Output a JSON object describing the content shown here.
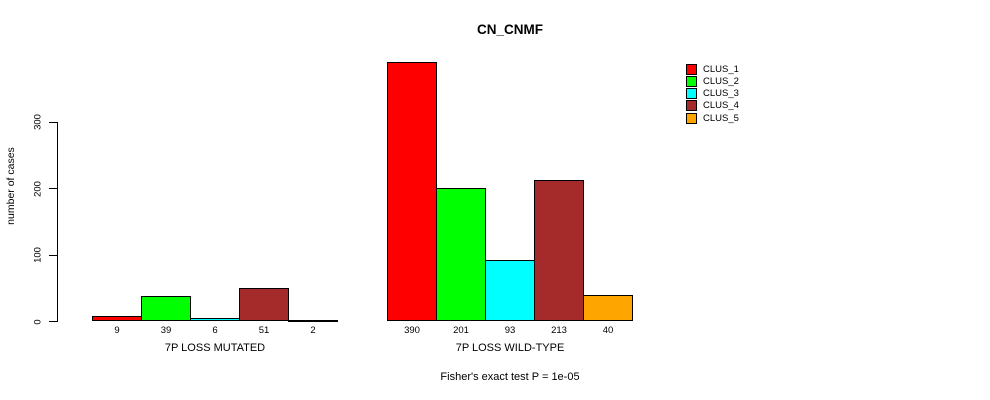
{
  "chart_data": {
    "type": "bar",
    "title": "CN_CNMF",
    "ylabel": "number of cases",
    "xlabel": "",
    "ylim": [
      0,
      390
    ],
    "yticks": [
      0,
      100,
      200,
      300
    ],
    "grid": false,
    "legend_position": "top-right",
    "caption": "Fisher's exact test P = 1e-05",
    "categories": [
      "7P LOSS MUTATED",
      "7P LOSS WILD-TYPE"
    ],
    "series": [
      {
        "name": "CLUS_1",
        "color": "#ff0000",
        "values": [
          9,
          390
        ]
      },
      {
        "name": "CLUS_2",
        "color": "#00ff00",
        "values": [
          39,
          201
        ]
      },
      {
        "name": "CLUS_3",
        "color": "#00ffff",
        "values": [
          6,
          93
        ]
      },
      {
        "name": "CLUS_4",
        "color": "#a52a2a",
        "values": [
          51,
          213
        ]
      },
      {
        "name": "CLUS_5",
        "color": "#ffa500",
        "values": [
          2,
          40
        ]
      }
    ],
    "bar_value_labels": {
      "7P LOSS MUTATED": [
        "9",
        "39",
        "6",
        "51",
        "2"
      ],
      "7P LOSS WILD-TYPE": [
        "390",
        "201",
        "93",
        "213",
        "40"
      ]
    }
  }
}
